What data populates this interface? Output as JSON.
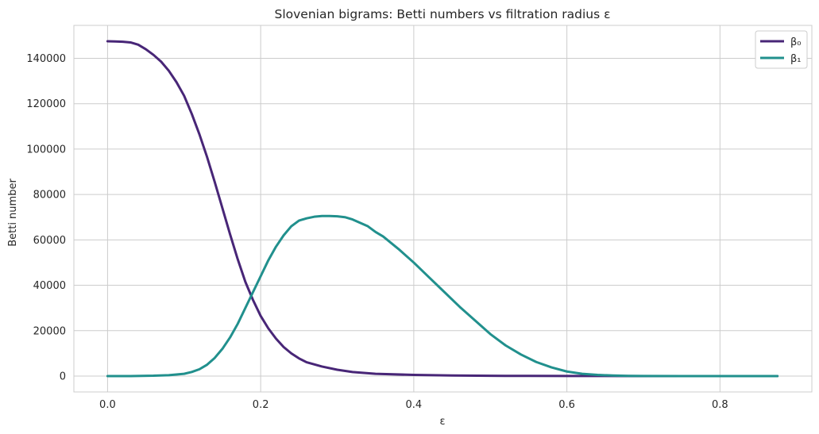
{
  "chart_data": {
    "type": "line",
    "title": "Slovenian bigrams: Betti numbers vs filtration radius ε",
    "xlabel": "ε",
    "ylabel": "Betti number",
    "xlim": [
      -0.044,
      0.92
    ],
    "ylim": [
      -7000,
      154500
    ],
    "xticks": [
      0.0,
      0.2,
      0.4,
      0.6,
      0.8
    ],
    "xtick_labels": [
      "0.0",
      "0.2",
      "0.4",
      "0.6",
      "0.8"
    ],
    "yticks": [
      0,
      20000,
      40000,
      60000,
      80000,
      100000,
      120000,
      140000
    ],
    "ytick_labels": [
      "0",
      "20000",
      "40000",
      "60000",
      "80000",
      "100000",
      "120000",
      "140000"
    ],
    "grid": true,
    "legend_position": "top-right",
    "series": [
      {
        "name": "β₀",
        "color": "#482677",
        "x": [
          0.0,
          0.01,
          0.02,
          0.03,
          0.04,
          0.05,
          0.06,
          0.07,
          0.08,
          0.09,
          0.1,
          0.11,
          0.12,
          0.13,
          0.14,
          0.15,
          0.16,
          0.17,
          0.18,
          0.19,
          0.2,
          0.21,
          0.22,
          0.23,
          0.24,
          0.25,
          0.26,
          0.28,
          0.3,
          0.32,
          0.35,
          0.4,
          0.45,
          0.5,
          0.55,
          0.6,
          0.7,
          0.8,
          0.875
        ],
        "y": [
          147500,
          147400,
          147300,
          147000,
          146000,
          144000,
          141500,
          138500,
          134500,
          129500,
          123500,
          115500,
          106500,
          96500,
          85500,
          74000,
          62500,
          51500,
          41500,
          33500,
          26500,
          21000,
          16500,
          12800,
          10000,
          7800,
          6100,
          4200,
          2800,
          1800,
          1000,
          500,
          250,
          120,
          60,
          30,
          10,
          5,
          0
        ]
      },
      {
        "name": "β₁",
        "color": "#21908D",
        "x": [
          0.0,
          0.03,
          0.06,
          0.08,
          0.1,
          0.11,
          0.12,
          0.13,
          0.14,
          0.15,
          0.16,
          0.17,
          0.18,
          0.19,
          0.2,
          0.21,
          0.22,
          0.23,
          0.24,
          0.25,
          0.26,
          0.27,
          0.28,
          0.29,
          0.3,
          0.31,
          0.32,
          0.33,
          0.34,
          0.35,
          0.36,
          0.38,
          0.4,
          0.42,
          0.44,
          0.46,
          0.48,
          0.5,
          0.52,
          0.54,
          0.56,
          0.58,
          0.6,
          0.62,
          0.64,
          0.66,
          0.68,
          0.7,
          0.75,
          0.8,
          0.875
        ],
        "y": [
          0,
          0,
          150,
          400,
          1000,
          1800,
          3000,
          5000,
          8000,
          12000,
          17000,
          23000,
          30000,
          37000,
          44000,
          51000,
          57000,
          62000,
          66000,
          68500,
          69500,
          70200,
          70500,
          70500,
          70400,
          70000,
          69000,
          67500,
          66000,
          63500,
          61500,
          56000,
          50000,
          43500,
          37000,
          30500,
          24500,
          18500,
          13500,
          9500,
          6200,
          3800,
          2000,
          1000,
          500,
          250,
          100,
          50,
          10,
          0,
          0
        ]
      }
    ]
  }
}
